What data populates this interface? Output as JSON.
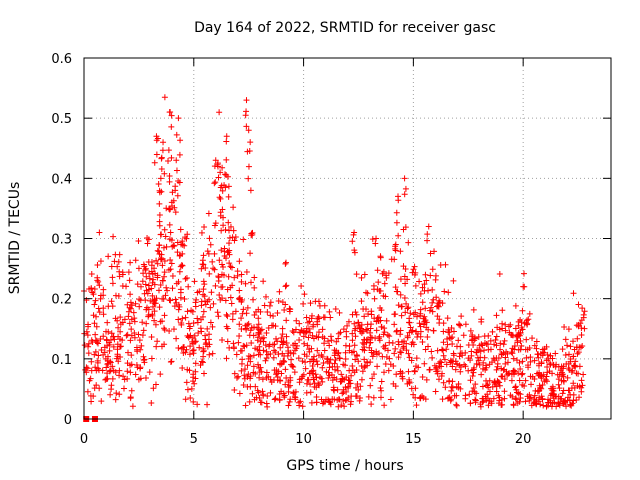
{
  "chart_data": {
    "type": "scatter",
    "title": "Day 164 of 2022, SRMTID for receiver gasc",
    "xlabel": "GPS time / hours",
    "ylabel": "SRMTID / TECUs",
    "xlim": [
      0,
      24
    ],
    "ylim": [
      0,
      0.6
    ],
    "xticks": [
      0,
      5,
      10,
      15,
      20
    ],
    "xtick_labels": [
      "0",
      "5",
      "10",
      "15",
      "20"
    ],
    "yticks": [
      0,
      0.1,
      0.2,
      0.3,
      0.4,
      0.5,
      0.6
    ],
    "ytick_labels": [
      "0",
      "0.1",
      "0.2",
      "0.3",
      "0.4",
      "0.5",
      "0.6"
    ],
    "grid": true,
    "marker": "+",
    "color": "#ff0000",
    "zero_value_points": [
      [
        0.1,
        0
      ],
      [
        0.5,
        0
      ]
    ],
    "series": [
      {
        "name": "SRMTID",
        "trend": [
          [
            0.0,
            0.11
          ],
          [
            0.5,
            0.13
          ],
          [
            1.0,
            0.1
          ],
          [
            1.5,
            0.16
          ],
          [
            2.0,
            0.12
          ],
          [
            2.5,
            0.15
          ],
          [
            3.0,
            0.17
          ],
          [
            3.5,
            0.24
          ],
          [
            4.0,
            0.28
          ],
          [
            4.5,
            0.18
          ],
          [
            5.0,
            0.13
          ],
          [
            5.5,
            0.17
          ],
          [
            6.0,
            0.25
          ],
          [
            6.5,
            0.27
          ],
          [
            7.0,
            0.17
          ],
          [
            7.5,
            0.15
          ],
          [
            8.0,
            0.1
          ],
          [
            8.5,
            0.1
          ],
          [
            9.0,
            0.11
          ],
          [
            9.5,
            0.1
          ],
          [
            10.0,
            0.12
          ],
          [
            10.5,
            0.1
          ],
          [
            11.0,
            0.09
          ],
          [
            11.5,
            0.08
          ],
          [
            12.0,
            0.09
          ],
          [
            12.5,
            0.11
          ],
          [
            13.0,
            0.13
          ],
          [
            13.5,
            0.14
          ],
          [
            14.0,
            0.15
          ],
          [
            14.5,
            0.15
          ],
          [
            15.0,
            0.12
          ],
          [
            15.5,
            0.14
          ],
          [
            16.0,
            0.15
          ],
          [
            16.5,
            0.11
          ],
          [
            17.0,
            0.09
          ],
          [
            17.5,
            0.09
          ],
          [
            18.0,
            0.08
          ],
          [
            18.5,
            0.08
          ],
          [
            19.0,
            0.09
          ],
          [
            19.5,
            0.1
          ],
          [
            20.0,
            0.11
          ],
          [
            20.5,
            0.07
          ],
          [
            21.0,
            0.05
          ],
          [
            21.5,
            0.05
          ],
          [
            22.0,
            0.07
          ],
          [
            22.5,
            0.1
          ],
          [
            22.8,
            0.12
          ]
        ],
        "spikes": [
          [
            3.3,
            0.47
          ],
          [
            3.6,
            0.46
          ],
          [
            3.9,
            0.51
          ],
          [
            4.3,
            0.5
          ],
          [
            4.2,
            0.43
          ],
          [
            4.0,
            0.36
          ],
          [
            6.0,
            0.43
          ],
          [
            6.5,
            0.47
          ],
          [
            6.2,
            0.41
          ],
          [
            7.4,
            0.53
          ],
          [
            7.5,
            0.48
          ],
          [
            7.6,
            0.38
          ],
          [
            3.5,
            0.4
          ],
          [
            12.3,
            0.31
          ],
          [
            13.3,
            0.3
          ],
          [
            14.3,
            0.37
          ],
          [
            14.6,
            0.4
          ],
          [
            15.7,
            0.32
          ],
          [
            9.2,
            0.26
          ],
          [
            20.0,
            0.22
          ],
          [
            0.7,
            0.31
          ],
          [
            2.1,
            0.26
          ],
          [
            14.2,
            0.29
          ]
        ]
      }
    ]
  }
}
